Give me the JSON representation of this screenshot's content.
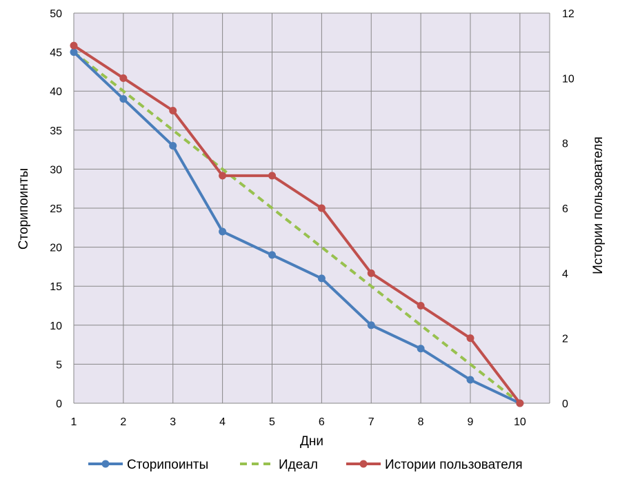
{
  "chart_data": {
    "type": "line",
    "xlabel": "Дни",
    "ylabel": "Сторипоинты",
    "y2label": "Истории пользователя",
    "x": [
      1,
      2,
      3,
      4,
      5,
      6,
      7,
      8,
      9,
      10
    ],
    "xticks": [
      "1",
      "2",
      "3",
      "4",
      "5",
      "6",
      "7",
      "8",
      "9",
      "10"
    ],
    "xlim": [
      1,
      10.6
    ],
    "ylim": [
      0,
      50
    ],
    "yticks": [
      0,
      5,
      10,
      15,
      20,
      25,
      30,
      35,
      40,
      45,
      50
    ],
    "y2lim": [
      0,
      12
    ],
    "y2ticks": [
      0,
      2,
      4,
      6,
      8,
      10,
      12
    ],
    "grid": true,
    "legend_position": "bottom",
    "plot_background": "#e8e4f0",
    "grid_color": "#878787",
    "series": [
      {
        "name": "Сторипоинты",
        "axis": "left",
        "style": "solid-markers",
        "color": "#4a7ebb",
        "values": [
          45,
          39,
          33,
          22,
          19,
          16,
          10,
          7,
          3,
          0
        ]
      },
      {
        "name": "Идеал",
        "axis": "left",
        "style": "dashed",
        "color": "#98c14f",
        "values": [
          45,
          40,
          35,
          30,
          25,
          20,
          15,
          10,
          5,
          0
        ]
      },
      {
        "name": "Истории пользователя",
        "axis": "right",
        "style": "solid-markers",
        "color": "#c0504d",
        "values": [
          11,
          10,
          9,
          7,
          7,
          6,
          4,
          3,
          2,
          0
        ]
      }
    ]
  }
}
